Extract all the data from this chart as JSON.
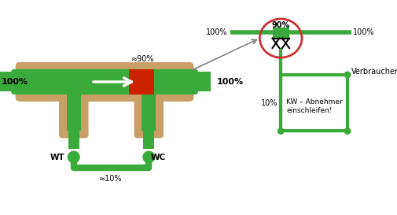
{
  "bg_color": "#ffffff",
  "pipe_green": "#3aaa3a",
  "tan": "#c8a066",
  "red": "#cc2200",
  "red_circle": "#cc3333",
  "gray_arrow": "#999999",
  "label_100_left": "100%",
  "label_100_right": "100%",
  "label_90": "≈90%",
  "label_10": "≈10%",
  "label_WT": "WT",
  "label_WC": "WC",
  "label_90_diagram": "90%",
  "label_100_diag_left": "100%",
  "label_100_diag_right": "100%",
  "label_10_diag": "10%",
  "label_verbraucher": "Verbraucher",
  "label_kw": "KW – Abnehmer\neinschleifen!"
}
